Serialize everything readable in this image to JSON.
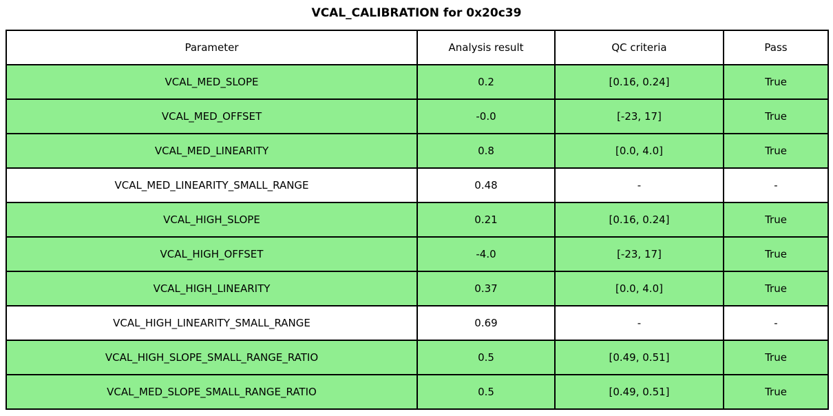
{
  "title": "VCAL_CALIBRATION for 0x20c39",
  "colors": {
    "pass_row_bg": "#90EE90",
    "neutral_row_bg": "#FFFFFF",
    "border": "#000000",
    "text": "#000000"
  },
  "chart_data": {
    "type": "table",
    "title": "VCAL_CALIBRATION for 0x20c39",
    "columns": [
      "Parameter",
      "Analysis result",
      "QC criteria",
      "Pass"
    ],
    "rows": [
      {
        "parameter": "VCAL_MED_SLOPE",
        "result": "0.2",
        "qc": "[0.16, 0.24]",
        "pass": "True",
        "highlight": true
      },
      {
        "parameter": "VCAL_MED_OFFSET",
        "result": "-0.0",
        "qc": "[-23, 17]",
        "pass": "True",
        "highlight": true
      },
      {
        "parameter": "VCAL_MED_LINEARITY",
        "result": "0.8",
        "qc": "[0.0, 4.0]",
        "pass": "True",
        "highlight": true
      },
      {
        "parameter": "VCAL_MED_LINEARITY_SMALL_RANGE",
        "result": "0.48",
        "qc": "-",
        "pass": "-",
        "highlight": false
      },
      {
        "parameter": "VCAL_HIGH_SLOPE",
        "result": "0.21",
        "qc": "[0.16, 0.24]",
        "pass": "True",
        "highlight": true
      },
      {
        "parameter": "VCAL_HIGH_OFFSET",
        "result": "-4.0",
        "qc": "[-23, 17]",
        "pass": "True",
        "highlight": true
      },
      {
        "parameter": "VCAL_HIGH_LINEARITY",
        "result": "0.37",
        "qc": "[0.0, 4.0]",
        "pass": "True",
        "highlight": true
      },
      {
        "parameter": "VCAL_HIGH_LINEARITY_SMALL_RANGE",
        "result": "0.69",
        "qc": "-",
        "pass": "-",
        "highlight": false
      },
      {
        "parameter": "VCAL_HIGH_SLOPE_SMALL_RANGE_RATIO",
        "result": "0.5",
        "qc": "[0.49, 0.51]",
        "pass": "True",
        "highlight": true
      },
      {
        "parameter": "VCAL_MED_SLOPE_SMALL_RANGE_RATIO",
        "result": "0.5",
        "qc": "[0.49, 0.51]",
        "pass": "True",
        "highlight": true
      }
    ]
  }
}
